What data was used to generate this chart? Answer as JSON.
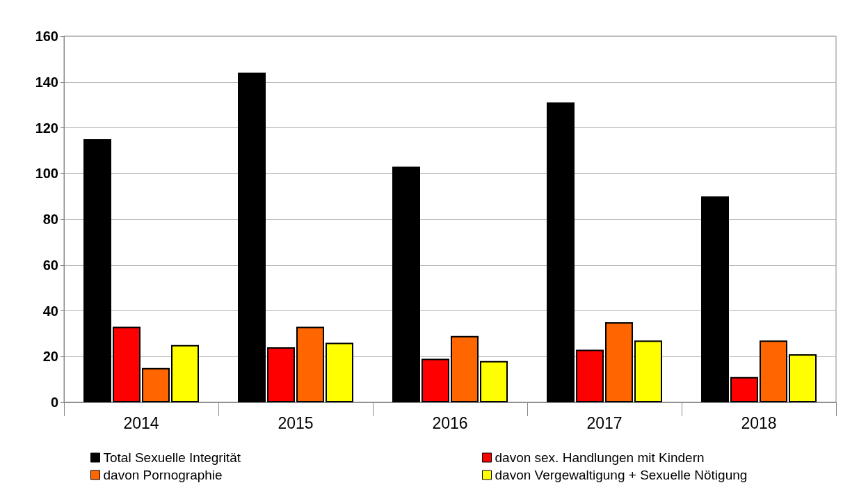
{
  "chart_data": {
    "type": "bar",
    "categories": [
      "2014",
      "2015",
      "2016",
      "2017",
      "2018"
    ],
    "series": [
      {
        "name": "Total Sexuelle Integrität",
        "color": "#000000",
        "values": [
          115,
          144,
          103,
          131,
          90
        ]
      },
      {
        "name": "davon sex. Handlungen mit Kindern",
        "color": "#ff0000",
        "values": [
          33,
          24,
          19,
          23,
          11
        ]
      },
      {
        "name": "davon Pornographie",
        "color": "#ff6600",
        "values": [
          15,
          33,
          29,
          35,
          27
        ]
      },
      {
        "name": "davon Vergewaltigung + Sexuelle Nötigung",
        "color": "#ffff00",
        "values": [
          25,
          26,
          18,
          27,
          21
        ]
      }
    ],
    "ylim": [
      0,
      160
    ],
    "yticks": [
      0,
      20,
      40,
      60,
      80,
      100,
      120,
      140,
      160
    ],
    "grid": "y",
    "legend": "bottom"
  }
}
